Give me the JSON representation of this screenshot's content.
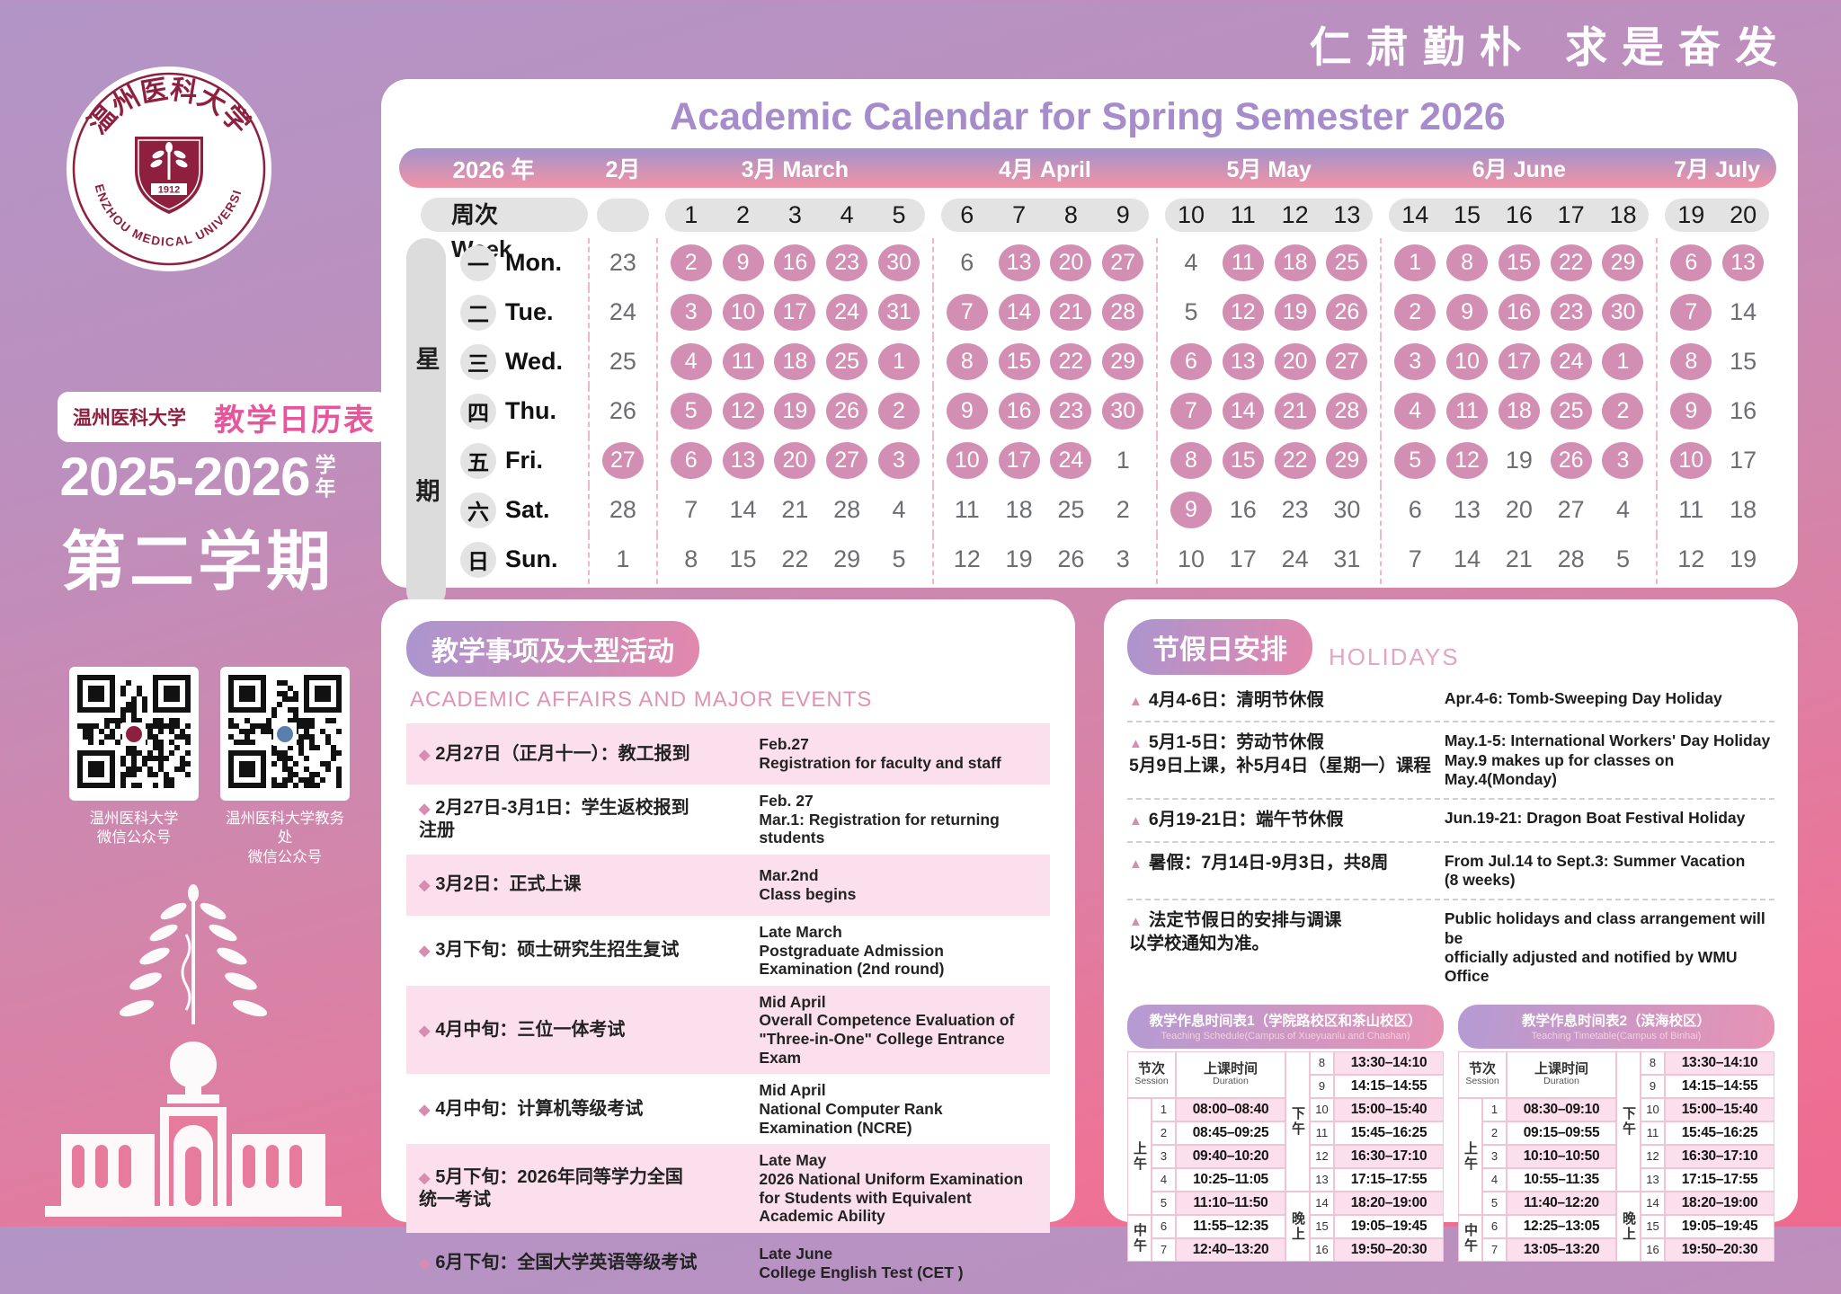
{
  "motto": "仁肃勤朴  求是奋发",
  "sidebar": {
    "university_cn": "温州医科大学",
    "university_en": "WENZHOU MEDICAL UNIVERSITY",
    "seal_year": "1912",
    "badge_left": "温州医科大学",
    "badge_right": "教学日历表",
    "years": "2025-2026",
    "year_suffix_top": "学",
    "year_suffix_bottom": "年",
    "semester": "第二学期",
    "qr_captions": [
      "温州医科大学\n微信公众号",
      "温州医科大学教务处\n微信公众号"
    ]
  },
  "calendar": {
    "title": "Academic Calendar for Spring Semester 2026",
    "year_label": "2026 年",
    "week_header": "周次 Week",
    "weekday_label": "星期",
    "months": [
      {
        "label": "2月",
        "weeks": []
      },
      {
        "label": "3月 March",
        "weeks": [
          "1",
          "2",
          "3",
          "4",
          "5"
        ]
      },
      {
        "label": "4月 April",
        "weeks": [
          "6",
          "7",
          "8",
          "9"
        ]
      },
      {
        "label": "5月 May",
        "weeks": [
          "10",
          "11",
          "12",
          "13"
        ]
      },
      {
        "label": "6月 June",
        "weeks": [
          "14",
          "15",
          "16",
          "17",
          "18"
        ]
      },
      {
        "label": "7月 July",
        "weeks": [
          "19",
          "20"
        ]
      }
    ],
    "day_rows": [
      {
        "cn": "一",
        "en": "Mon.",
        "cells": [
          [
            [
              "23",
              0
            ]
          ],
          [
            [
              "2",
              1
            ],
            [
              "9",
              1
            ],
            [
              "16",
              1
            ],
            [
              "23",
              1
            ],
            [
              "30",
              1
            ]
          ],
          [
            [
              "6",
              0
            ],
            [
              "13",
              1
            ],
            [
              "20",
              1
            ],
            [
              "27",
              1
            ]
          ],
          [
            [
              "4",
              0
            ],
            [
              "11",
              1
            ],
            [
              "18",
              1
            ],
            [
              "25",
              1
            ]
          ],
          [
            [
              "1",
              1
            ],
            [
              "8",
              1
            ],
            [
              "15",
              1
            ],
            [
              "22",
              1
            ],
            [
              "29",
              1
            ]
          ],
          [
            [
              "6",
              1
            ],
            [
              "13",
              1
            ]
          ]
        ]
      },
      {
        "cn": "二",
        "en": "Tue.",
        "cells": [
          [
            [
              "24",
              0
            ]
          ],
          [
            [
              "3",
              1
            ],
            [
              "10",
              1
            ],
            [
              "17",
              1
            ],
            [
              "24",
              1
            ],
            [
              "31",
              1
            ]
          ],
          [
            [
              "7",
              1
            ],
            [
              "14",
              1
            ],
            [
              "21",
              1
            ],
            [
              "28",
              1
            ]
          ],
          [
            [
              "5",
              0
            ],
            [
              "12",
              1
            ],
            [
              "19",
              1
            ],
            [
              "26",
              1
            ]
          ],
          [
            [
              "2",
              1
            ],
            [
              "9",
              1
            ],
            [
              "16",
              1
            ],
            [
              "23",
              1
            ],
            [
              "30",
              1
            ]
          ],
          [
            [
              "7",
              1
            ],
            [
              "14",
              0
            ]
          ]
        ]
      },
      {
        "cn": "三",
        "en": "Wed.",
        "cells": [
          [
            [
              "25",
              0
            ]
          ],
          [
            [
              "4",
              1
            ],
            [
              "11",
              1
            ],
            [
              "18",
              1
            ],
            [
              "25",
              1
            ],
            [
              "1",
              1
            ]
          ],
          [
            [
              "8",
              1
            ],
            [
              "15",
              1
            ],
            [
              "22",
              1
            ],
            [
              "29",
              1
            ]
          ],
          [
            [
              "6",
              1
            ],
            [
              "13",
              1
            ],
            [
              "20",
              1
            ],
            [
              "27",
              1
            ]
          ],
          [
            [
              "3",
              1
            ],
            [
              "10",
              1
            ],
            [
              "17",
              1
            ],
            [
              "24",
              1
            ],
            [
              "1",
              1
            ]
          ],
          [
            [
              "8",
              1
            ],
            [
              "15",
              0
            ]
          ]
        ]
      },
      {
        "cn": "四",
        "en": "Thu.",
        "cells": [
          [
            [
              "26",
              0
            ]
          ],
          [
            [
              "5",
              1
            ],
            [
              "12",
              1
            ],
            [
              "19",
              1
            ],
            [
              "26",
              1
            ],
            [
              "2",
              1
            ]
          ],
          [
            [
              "9",
              1
            ],
            [
              "16",
              1
            ],
            [
              "23",
              1
            ],
            [
              "30",
              1
            ]
          ],
          [
            [
              "7",
              1
            ],
            [
              "14",
              1
            ],
            [
              "21",
              1
            ],
            [
              "28",
              1
            ]
          ],
          [
            [
              "4",
              1
            ],
            [
              "11",
              1
            ],
            [
              "18",
              1
            ],
            [
              "25",
              1
            ],
            [
              "2",
              1
            ]
          ],
          [
            [
              "9",
              1
            ],
            [
              "16",
              0
            ]
          ]
        ]
      },
      {
        "cn": "五",
        "en": "Fri.",
        "cells": [
          [
            [
              "27",
              1
            ]
          ],
          [
            [
              "6",
              1
            ],
            [
              "13",
              1
            ],
            [
              "20",
              1
            ],
            [
              "27",
              1
            ],
            [
              "3",
              1
            ]
          ],
          [
            [
              "10",
              1
            ],
            [
              "17",
              1
            ],
            [
              "24",
              1
            ],
            [
              "1",
              0
            ]
          ],
          [
            [
              "8",
              1
            ],
            [
              "15",
              1
            ],
            [
              "22",
              1
            ],
            [
              "29",
              1
            ]
          ],
          [
            [
              "5",
              1
            ],
            [
              "12",
              1
            ],
            [
              "19",
              0
            ],
            [
              "26",
              1
            ],
            [
              "3",
              1
            ]
          ],
          [
            [
              "10",
              1
            ],
            [
              "17",
              0
            ]
          ]
        ]
      },
      {
        "cn": "六",
        "en": "Sat.",
        "cells": [
          [
            [
              "28",
              0
            ]
          ],
          [
            [
              "7",
              0
            ],
            [
              "14",
              0
            ],
            [
              "21",
              0
            ],
            [
              "28",
              0
            ],
            [
              "4",
              0
            ]
          ],
          [
            [
              "11",
              0
            ],
            [
              "18",
              0
            ],
            [
              "25",
              0
            ],
            [
              "2",
              0
            ]
          ],
          [
            [
              "9",
              1
            ],
            [
              "16",
              0
            ],
            [
              "23",
              0
            ],
            [
              "30",
              0
            ]
          ],
          [
            [
              "6",
              0
            ],
            [
              "13",
              0
            ],
            [
              "20",
              0
            ],
            [
              "27",
              0
            ],
            [
              "4",
              0
            ]
          ],
          [
            [
              "11",
              0
            ],
            [
              "18",
              0
            ]
          ]
        ]
      },
      {
        "cn": "日",
        "en": "Sun.",
        "cells": [
          [
            [
              "1",
              0
            ]
          ],
          [
            [
              "8",
              0
            ],
            [
              "15",
              0
            ],
            [
              "22",
              0
            ],
            [
              "29",
              0
            ],
            [
              "5",
              0
            ]
          ],
          [
            [
              "12",
              0
            ],
            [
              "19",
              0
            ],
            [
              "26",
              0
            ],
            [
              "3",
              0
            ]
          ],
          [
            [
              "10",
              0
            ],
            [
              "17",
              0
            ],
            [
              "24",
              0
            ],
            [
              "31",
              0
            ]
          ],
          [
            [
              "7",
              0
            ],
            [
              "14",
              0
            ],
            [
              "21",
              0
            ],
            [
              "28",
              0
            ],
            [
              "5",
              0
            ]
          ],
          [
            [
              "12",
              0
            ],
            [
              "19",
              0
            ]
          ]
        ]
      }
    ]
  },
  "events": {
    "title_cn": "教学事项及大型活动",
    "title_en": "ACADEMIC AFFAIRS AND MAJOR EVENTS",
    "items": [
      {
        "cn": "2月27日（正月十一）：教工报到",
        "en": "Feb.27\nRegistration for faculty and staff"
      },
      {
        "cn": "2月27日-3月1日：学生返校报到\n注册",
        "en": "Feb. 27\nMar.1: Registration for returning students"
      },
      {
        "cn": "3月2日：正式上课",
        "en": "Mar.2nd\nClass begins"
      },
      {
        "cn": "3月下旬：硕士研究生招生复试",
        "en": "Late March\nPostgraduate Admission Examination (2nd round)"
      },
      {
        "cn": "4月中旬：三位一体考试",
        "en": "Mid April\nOverall Competence Evaluation of \"Three-in-One\" College Entrance Exam"
      },
      {
        "cn": "4月中旬：计算机等级考试",
        "en": "Mid April\nNational Computer Rank Examination (NCRE)"
      },
      {
        "cn": "5月下旬：2026年同等学力全国\n统一考试",
        "en": "Late May\n2026 National Uniform Examination for Students with Equivalent Academic Ability"
      },
      {
        "cn": "6月下旬：全国大学英语等级考试",
        "en": "Late June\nCollege English Test (CET )"
      }
    ]
  },
  "holidays": {
    "title_cn": "节假日安排",
    "title_en": "HOLIDAYS",
    "items": [
      {
        "cn": "4月4-6日：清明节休假",
        "en": "Apr.4-6: Tomb-Sweeping Day Holiday"
      },
      {
        "cn": "5月1-5日：劳动节休假\n5月9日上课，补5月4日（星期一）课程",
        "en": "May.1-5: International Workers' Day Holiday\nMay.9 makes up for classes on May.4(Monday)"
      },
      {
        "cn": "6月19-21日：端午节休假",
        "en": "Jun.19-21: Dragon Boat Festival Holiday"
      },
      {
        "cn": "暑假：7月14日-9月3日，共8周",
        "en": "From Jul.14 to Sept.3: Summer Vacation\n(8 weeks)"
      },
      {
        "cn": "法定节假日的安排与调课\n以学校通知为准。",
        "en": "Public holidays and class arrangement will be\nofficially adjusted and notified by WMU Office"
      }
    ]
  },
  "timetables": [
    {
      "title_cn": "教学作息时间表1（学院路校区和茶山校区）",
      "title_en": "Teaching Schedule(Campus of Xueyuanlu and Chashan)",
      "col_session_cn": "节次",
      "col_session_en": "Session",
      "col_time_cn": "上课时间",
      "col_time_en": "Duration",
      "groups_left": [
        {
          "label": "上午",
          "count": 5
        },
        {
          "label": "中午",
          "count": 2
        }
      ],
      "groups_right": [
        {
          "label": "下午",
          "count": 6
        },
        {
          "label": "晚上",
          "count": 3
        }
      ],
      "sessions_left": [
        [
          "1",
          "08:00–08:40"
        ],
        [
          "2",
          "08:45–09:25"
        ],
        [
          "3",
          "09:40–10:20"
        ],
        [
          "4",
          "10:25–11:05"
        ],
        [
          "5",
          "11:10–11:50"
        ],
        [
          "6",
          "11:55–12:35"
        ],
        [
          "7",
          "12:40–13:20"
        ]
      ],
      "sessions_right": [
        [
          "8",
          "13:30–14:10"
        ],
        [
          "9",
          "14:15–14:55"
        ],
        [
          "10",
          "15:00–15:40"
        ],
        [
          "11",
          "15:45–16:25"
        ],
        [
          "12",
          "16:30–17:10"
        ],
        [
          "13",
          "17:15–17:55"
        ],
        [
          "14",
          "18:20–19:00"
        ],
        [
          "15",
          "19:05–19:45"
        ],
        [
          "16",
          "19:50–20:30"
        ]
      ]
    },
    {
      "title_cn": "教学作息时间表2（滨海校区）",
      "title_en": "Teaching Timetable(Campus of Binhai)",
      "col_session_cn": "节次",
      "col_session_en": "Session",
      "col_time_cn": "上课时间",
      "col_time_en": "Duration",
      "groups_left": [
        {
          "label": "上午",
          "count": 5
        },
        {
          "label": "中午",
          "count": 2
        }
      ],
      "groups_right": [
        {
          "label": "下午",
          "count": 6
        },
        {
          "label": "晚上",
          "count": 3
        }
      ],
      "sessions_left": [
        [
          "1",
          "08:30–09:10"
        ],
        [
          "2",
          "09:15–09:55"
        ],
        [
          "3",
          "10:10–10:50"
        ],
        [
          "4",
          "10:55–11:35"
        ],
        [
          "5",
          "11:40–12:20"
        ],
        [
          "6",
          "12:25–13:05"
        ],
        [
          "7",
          "13:05–13:20"
        ]
      ],
      "sessions_right": [
        [
          "8",
          "13:30–14:10"
        ],
        [
          "9",
          "14:15–14:55"
        ],
        [
          "10",
          "15:00–15:40"
        ],
        [
          "11",
          "15:45–16:25"
        ],
        [
          "12",
          "16:30–17:10"
        ],
        [
          "13",
          "17:15–17:55"
        ],
        [
          "14",
          "18:20–19:00"
        ],
        [
          "15",
          "19:05–19:45"
        ],
        [
          "16",
          "19:50–20:30"
        ]
      ]
    }
  ]
}
